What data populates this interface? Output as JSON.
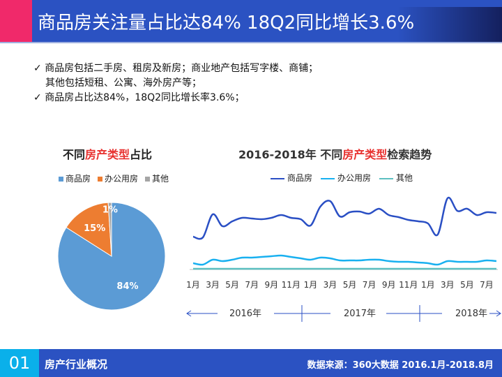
{
  "header": {
    "title": "商品房关注量占比达84%  18Q2同比增长3.6%"
  },
  "bullets": [
    {
      "check": "✓",
      "text": "商品房包括二手房、租房及新房；商业地产包括写字楼、商铺；"
    },
    {
      "check": "",
      "text": "其他包括短租、公寓、海外房产等；"
    },
    {
      "check": "✓",
      "text": "商品房占比达84%，18Q2同比增长率3.6%；"
    }
  ],
  "chart_data": [
    {
      "type": "pie",
      "title_parts": [
        "不同",
        "房产类型",
        "占比"
      ],
      "labels": [
        "商品房",
        "办公用房",
        "其他"
      ],
      "values": [
        84,
        15,
        1
      ],
      "data_labels": [
        "84%",
        "15%",
        "1%"
      ],
      "colors": [
        "#5b9bd5",
        "#ed7d31",
        "#a5a5a5"
      ],
      "legend": "top"
    },
    {
      "type": "line",
      "title_parts": [
        "2016-2018年  不同",
        "房产类型",
        "检索趋势"
      ],
      "x_ticks": [
        "1月",
        "3月",
        "5月",
        "7月",
        "9月",
        "11月",
        "1月",
        "3月",
        "5月",
        "7月",
        "9月",
        "11月",
        "1月",
        "3月",
        "5月",
        "7月"
      ],
      "years": [
        "2016年",
        "2017年",
        "2018年"
      ],
      "x_range": [
        "2016-01",
        "2018-08"
      ],
      "legend": "top",
      "series": [
        {
          "name": "商品房",
          "color": "#2a4fc4",
          "values": [
            47,
            46,
            79,
            62,
            69,
            74,
            73,
            72,
            74,
            78,
            74,
            72,
            63,
            90,
            98,
            76,
            82,
            83,
            80,
            87,
            78,
            75,
            71,
            69,
            66,
            50,
            102,
            84,
            87,
            78,
            82,
            81
          ]
        },
        {
          "name": "办公用房",
          "color": "#18b0f0",
          "values": [
            9,
            7,
            14,
            12,
            14,
            17,
            17,
            18,
            19,
            20,
            18,
            16,
            14,
            17,
            16,
            13,
            13,
            13,
            14,
            14,
            12,
            11,
            11,
            10,
            9,
            7,
            12,
            11,
            11,
            11,
            13,
            12
          ]
        },
        {
          "name": "其他",
          "color": "#5cbfc0",
          "values": [
            1,
            1,
            1,
            1,
            1,
            1,
            1,
            1,
            1,
            1,
            1,
            1,
            1,
            1,
            1,
            1,
            1,
            1,
            1,
            1,
            1,
            1,
            1,
            1,
            1,
            1,
            1,
            1,
            1,
            1,
            1,
            1
          ]
        }
      ]
    }
  ],
  "footer": {
    "number": "01",
    "section": "房产行业概况",
    "source": "数据来源：360大数据  2016.1月-2018.8月"
  }
}
